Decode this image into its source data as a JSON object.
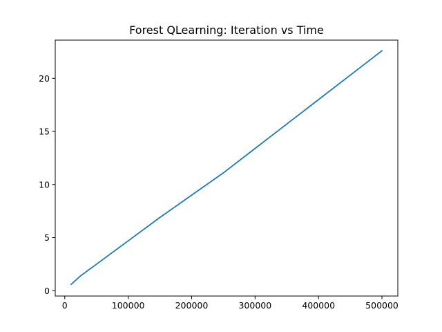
{
  "chart_data": {
    "type": "line",
    "title": "Forest QLearning: Iteration vs Time",
    "xlabel": "",
    "ylabel": "",
    "xlim": [
      -15000,
      525000
    ],
    "ylim": [
      -0.5,
      23.6
    ],
    "grid": false,
    "legend": "none",
    "x_ticks": [
      0,
      100000,
      200000,
      300000,
      400000,
      500000
    ],
    "x_tick_labels": [
      "0",
      "100000",
      "200000",
      "300000",
      "400000",
      "500000"
    ],
    "y_ticks": [
      0,
      5,
      10,
      15,
      20
    ],
    "y_tick_labels": [
      "0",
      "5",
      "10",
      "15",
      "20"
    ],
    "series": [
      {
        "color": "#1f77b4",
        "x": [
          10000,
          25000,
          50000,
          100000,
          150000,
          200000,
          250000,
          300000,
          350000,
          400000,
          450000,
          500000
        ],
        "y": [
          0.6,
          1.4,
          2.5,
          4.7,
          6.9,
          9.0,
          11.1,
          13.4,
          15.7,
          18.0,
          20.3,
          22.6
        ]
      }
    ]
  }
}
